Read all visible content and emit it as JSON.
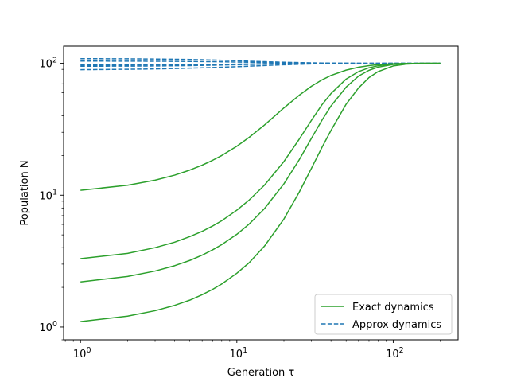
{
  "chart_data": {
    "type": "line",
    "title": "",
    "xlabel": "Generation τ",
    "ylabel": "Population N",
    "xscale": "log",
    "yscale": "log",
    "xlim": [
      0.78,
      260
    ],
    "ylim": [
      0.8,
      135
    ],
    "grid": false,
    "legend_position": "lower-right",
    "x_ticks": [
      {
        "value": 1,
        "base": "10",
        "exp": "0"
      },
      {
        "value": 10,
        "base": "10",
        "exp": "1"
      },
      {
        "value": 100,
        "base": "10",
        "exp": "2"
      }
    ],
    "y_ticks": [
      {
        "value": 1,
        "base": "10",
        "exp": "0"
      },
      {
        "value": 10,
        "base": "10",
        "exp": "1"
      },
      {
        "value": 100,
        "base": "10",
        "exp": "2"
      }
    ],
    "x": [
      1,
      2,
      3,
      4,
      5,
      6,
      7,
      8,
      10,
      12,
      15,
      20,
      25,
      30,
      35,
      40,
      50,
      60,
      70,
      80,
      100,
      120,
      150,
      200
    ],
    "series": [
      {
        "name": "Exact dynamics",
        "group": "exact",
        "color": "#2ca02c",
        "style": "solid",
        "values": [
          10.9,
          11.9,
          13.0,
          14.2,
          15.5,
          16.9,
          18.4,
          20.0,
          23.5,
          27.5,
          34.0,
          45.9,
          57.2,
          67.0,
          74.9,
          80.9,
          88.8,
          93.4,
          96.1,
          97.7,
          99.3,
          99.8,
          100.0,
          100.0
        ]
      },
      {
        "group": "exact",
        "color": "#2ca02c",
        "style": "solid",
        "values": [
          3.3,
          3.62,
          4.0,
          4.4,
          4.85,
          5.32,
          5.84,
          6.4,
          7.7,
          9.2,
          11.9,
          18.0,
          26.5,
          37.0,
          48.5,
          59.0,
          76.0,
          86.5,
          92.5,
          95.8,
          98.8,
          99.6,
          99.9,
          100.0
        ]
      },
      {
        "group": "exact",
        "color": "#2ca02c",
        "style": "solid",
        "values": [
          2.2,
          2.42,
          2.66,
          2.92,
          3.2,
          3.51,
          3.85,
          4.22,
          5.05,
          6.05,
          7.9,
          12.2,
          18.5,
          27.0,
          37.0,
          47.5,
          66.0,
          80.0,
          88.5,
          93.5,
          98.0,
          99.4,
          99.9,
          100.0
        ]
      },
      {
        "group": "exact",
        "color": "#2ca02c",
        "style": "solid",
        "values": [
          1.1,
          1.21,
          1.33,
          1.46,
          1.6,
          1.76,
          1.93,
          2.12,
          2.56,
          3.08,
          4.1,
          6.6,
          10.5,
          16.0,
          23.0,
          31.0,
          49.0,
          65.0,
          78.0,
          86.5,
          95.5,
          98.5,
          99.7,
          100.0
        ]
      },
      {
        "name": "Approx dynamics",
        "group": "approx",
        "color": "#1f77b4",
        "style": "dashed",
        "values": [
          108.5,
          108.2,
          107.8,
          107.4,
          107.0,
          106.5,
          106.0,
          105.5,
          104.6,
          103.8,
          102.9,
          101.9,
          101.3,
          100.8,
          100.5,
          100.3,
          100.1,
          100.0,
          100.0,
          100.0,
          100.0,
          100.0,
          100.0,
          100.0
        ]
      },
      {
        "group": "approx",
        "color": "#1f77b4",
        "style": "dashed",
        "values": [
          104.0,
          103.9,
          103.7,
          103.5,
          103.3,
          103.1,
          102.9,
          102.6,
          102.2,
          101.9,
          101.4,
          100.9,
          100.6,
          100.4,
          100.3,
          100.2,
          100.1,
          100.0,
          100.0,
          100.0,
          100.0,
          100.0,
          100.0,
          100.0
        ]
      },
      {
        "group": "approx",
        "color": "#1f77b4",
        "style": "dashed",
        "values": [
          97.0,
          97.1,
          97.3,
          97.5,
          97.7,
          97.9,
          98.1,
          98.3,
          98.6,
          98.9,
          99.2,
          99.5,
          99.7,
          99.8,
          99.9,
          99.95,
          100.0,
          100.0,
          100.0,
          100.0,
          100.0,
          100.0,
          100.0,
          100.0
        ]
      },
      {
        "group": "approx",
        "color": "#1f77b4",
        "style": "dashed",
        "values": [
          95.0,
          95.2,
          95.5,
          95.8,
          96.1,
          96.4,
          96.7,
          97.0,
          97.6,
          98.1,
          98.7,
          99.3,
          99.6,
          99.8,
          99.9,
          99.95,
          100.0,
          100.0,
          100.0,
          100.0,
          100.0,
          100.0,
          100.0,
          100.0
        ]
      },
      {
        "group": "approx",
        "color": "#1f77b4",
        "style": "dashed",
        "values": [
          89.5,
          90.1,
          90.7,
          91.3,
          91.9,
          92.4,
          92.9,
          93.4,
          94.3,
          95.1,
          96.2,
          97.5,
          98.4,
          99.0,
          99.4,
          99.6,
          99.85,
          99.95,
          100.0,
          100.0,
          100.0,
          100.0,
          100.0,
          100.0
        ]
      }
    ]
  }
}
